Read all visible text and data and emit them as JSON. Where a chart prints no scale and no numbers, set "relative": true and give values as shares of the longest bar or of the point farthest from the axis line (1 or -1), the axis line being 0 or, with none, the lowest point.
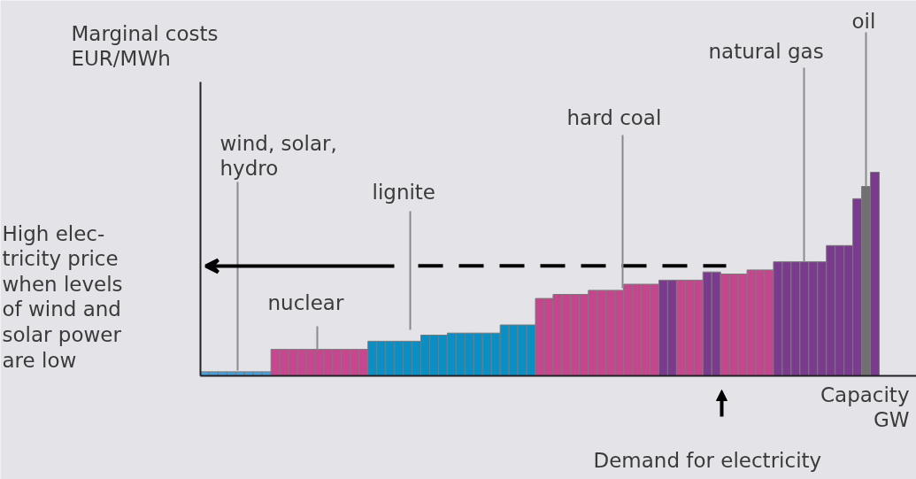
{
  "chart_data": {
    "type": "bar",
    "relative": true,
    "xlabel": "Capacity\nGW",
    "ref_lines": [
      {
        "axis": "y",
        "value": 0.54,
        "line_style": "dashed",
        "color": "#000000"
      }
    ],
    "categories": [
      null,
      null,
      null,
      null,
      null,
      null,
      null,
      null,
      null,
      null,
      null,
      null,
      null,
      null,
      null,
      null,
      null,
      null,
      null,
      null,
      null,
      null,
      null,
      null,
      null,
      null,
      null,
      null,
      null,
      null,
      null,
      null,
      null,
      null,
      null,
      null,
      null,
      null,
      null,
      null,
      null,
      null,
      null,
      null,
      null,
      null,
      null,
      null,
      null,
      null,
      null,
      null,
      null,
      null,
      null,
      null,
      null,
      null,
      null,
      null,
      null,
      null,
      null,
      null,
      null,
      null,
      null,
      null,
      null,
      null,
      null,
      null,
      null,
      null,
      null,
      null,
      null
    ],
    "values": [
      0.02,
      0.02,
      0.02,
      0.02,
      0.02,
      0.02,
      0.02,
      0.02,
      0.13,
      0.13,
      0.13,
      0.13,
      0.13,
      0.13,
      0.13,
      0.13,
      0.13,
      0.13,
      0.13,
      0.17,
      0.17,
      0.17,
      0.17,
      0.17,
      0.17,
      0.2,
      0.2,
      0.2,
      0.21,
      0.21,
      0.21,
      0.21,
      0.21,
      0.21,
      0.25,
      0.25,
      0.25,
      0.25,
      0.38,
      0.38,
      0.4,
      0.4,
      0.4,
      0.4,
      0.42,
      0.42,
      0.42,
      0.42,
      0.45,
      0.45,
      0.45,
      0.45,
      0.47,
      0.47,
      0.47,
      0.47,
      0.47,
      0.51,
      0.51,
      0.5,
      0.5,
      0.5,
      0.52,
      0.52,
      0.52,
      0.56,
      0.56,
      0.56,
      0.56,
      0.56,
      0.56,
      0.64,
      0.64,
      0.64,
      0.87,
      0.93,
      1
    ],
    "colors": [
      "#4a9fd8",
      "#4a9fd8",
      "#4a9fd8",
      "#4a9fd8",
      "#4a9fd8",
      "#4a9fd8",
      "#4a9fd8",
      "#4a9fd8",
      "#c8468f",
      "#c8468f",
      "#c8468f",
      "#c8468f",
      "#c8468f",
      "#c8468f",
      "#c8468f",
      "#c8468f",
      "#c8468f",
      "#c8468f",
      "#c8468f",
      "#0a8ec4",
      "#0a8ec4",
      "#0a8ec4",
      "#0a8ec4",
      "#0a8ec4",
      "#0a8ec4",
      "#0a8ec4",
      "#0a8ec4",
      "#0a8ec4",
      "#0a8ec4",
      "#0a8ec4",
      "#0a8ec4",
      "#0a8ec4",
      "#0a8ec4",
      "#0a8ec4",
      "#0a8ec4",
      "#0a8ec4",
      "#0a8ec4",
      "#0a8ec4",
      "#c4478e",
      "#c4478e",
      "#c4478e",
      "#c4478e",
      "#c4478e",
      "#c4478e",
      "#c4478e",
      "#c4478e",
      "#c4478e",
      "#c4478e",
      "#c4478e",
      "#c4478e",
      "#c4478e",
      "#c4478e",
      "#7a3a8e",
      "#7a3a8e",
      "#c4478e",
      "#c4478e",
      "#c4478e",
      "#7a3a8e",
      "#7a3a8e",
      "#c4478e",
      "#c4478e",
      "#c4478e",
      "#c4478e",
      "#c4478e",
      "#c4478e",
      "#7a3a8e",
      "#7a3a8e",
      "#7a3a8e",
      "#7a3a8e",
      "#7a3a8e",
      "#7a3a8e",
      "#7a3a8e",
      "#7a3a8e",
      "#7a3a8e",
      "#7a3a8e",
      "#707070",
      "#7a3a8e"
    ],
    "annotations": [
      "Marginal costs\nEUR/MWh",
      "wind, solar,\nhydro",
      "nuclear",
      "lignite",
      "hard coal",
      "natural gas",
      "oil",
      "High elec-\ntricity price\nwhen levels\nof wind and\nsolar power\nare low",
      "Demand for electricity"
    ]
  }
}
